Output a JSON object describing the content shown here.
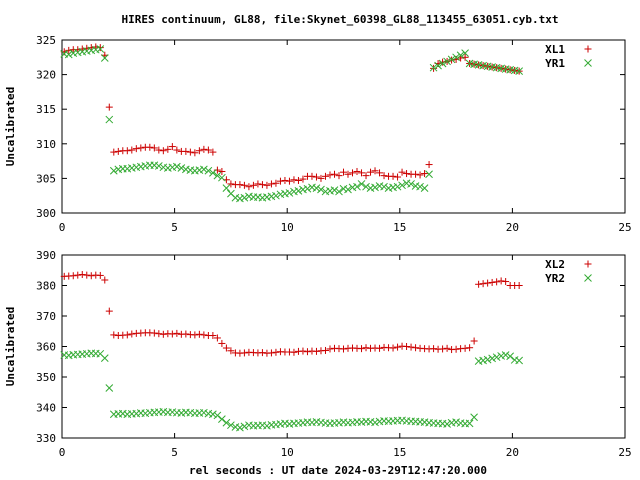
{
  "title": "HIRES continuum, GL88, file:Skynet_60398_GL88_113455_63051.cyb.txt",
  "xlabel": "rel seconds : UT date 2024-03-29T12:47:20.000",
  "colors": {
    "plus": "#cc0000",
    "cross": "#33aa33",
    "axis": "#000000"
  },
  "chart_data": [
    {
      "type": "scatter",
      "title": "HIRES continuum, GL88, file:Skynet_60398_GL88_113455_63051.cyb.txt",
      "xlabel": "",
      "ylabel": "Uncalibrated",
      "xlim": [
        0,
        25
      ],
      "ylim": [
        300,
        325
      ],
      "xticks": [
        0,
        5,
        10,
        15,
        20,
        25
      ],
      "yticks": [
        300,
        305,
        310,
        315,
        320,
        325
      ],
      "grid": false,
      "legend": "top-right",
      "series": [
        {
          "name": "XL1",
          "marker": "plus",
          "x": [
            0.1,
            0.3,
            0.5,
            0.7,
            0.9,
            1.1,
            1.3,
            1.5,
            1.7,
            1.9,
            2.1,
            2.3,
            2.5,
            2.7,
            2.9,
            3.1,
            3.3,
            3.5,
            3.7,
            3.9,
            4.1,
            4.3,
            4.5,
            4.7,
            4.9,
            5.1,
            5.3,
            5.5,
            5.7,
            5.9,
            6.1,
            6.3,
            6.5,
            6.7,
            6.9,
            7.1,
            7.3,
            7.5,
            7.7,
            7.9,
            8.1,
            8.3,
            8.5,
            8.7,
            8.9,
            9.1,
            9.3,
            9.5,
            9.7,
            9.9,
            10.1,
            10.3,
            10.5,
            10.7,
            10.9,
            11.1,
            11.3,
            11.5,
            11.7,
            11.9,
            12.1,
            12.3,
            12.5,
            12.7,
            12.9,
            13.1,
            13.3,
            13.5,
            13.7,
            13.9,
            14.1,
            14.3,
            14.5,
            14.7,
            14.9,
            15.1,
            15.3,
            15.5,
            15.7,
            15.9,
            16.1,
            16.3,
            16.5,
            16.7,
            16.9,
            17.1,
            17.3,
            17.5,
            17.7,
            17.9,
            18.1,
            18.3,
            18.5,
            18.7,
            18.9,
            19.1,
            19.3,
            19.5,
            19.7,
            19.9,
            20.1,
            20.3
          ],
          "y": [
            323.3,
            323.5,
            323.6,
            323.6,
            323.7,
            323.8,
            323.9,
            324.0,
            323.9,
            322.8,
            315.3,
            308.8,
            308.9,
            309.0,
            309.0,
            309.1,
            309.3,
            309.4,
            309.5,
            309.5,
            309.4,
            309.1,
            309.0,
            309.2,
            309.6,
            309.1,
            308.9,
            308.9,
            308.8,
            308.7,
            309.0,
            309.2,
            309.1,
            308.8,
            306.2,
            306.0,
            304.8,
            304.2,
            304.1,
            304.1,
            304.0,
            303.8,
            304.0,
            304.2,
            304.1,
            304.0,
            304.2,
            304.3,
            304.6,
            304.7,
            304.6,
            304.8,
            304.7,
            304.9,
            305.3,
            305.3,
            305.2,
            305.0,
            305.3,
            305.5,
            305.6,
            305.4,
            305.9,
            305.6,
            305.8,
            306.0,
            305.8,
            305.4,
            305.9,
            306.1,
            305.8,
            305.4,
            305.3,
            305.3,
            305.2,
            305.9,
            305.7,
            305.6,
            305.6,
            305.5,
            305.7,
            307.0,
            320.9,
            321.6,
            321.8,
            321.9,
            322.1,
            322.2,
            322.4,
            322.5,
            321.6,
            321.5,
            321.4,
            321.3,
            321.2,
            321.1,
            321.0,
            320.9,
            320.8,
            320.7,
            320.6,
            320.5
          ]
        },
        {
          "name": "YR1",
          "marker": "cross",
          "x": [
            0.1,
            0.3,
            0.5,
            0.7,
            0.9,
            1.1,
            1.3,
            1.5,
            1.7,
            1.9,
            2.1,
            2.3,
            2.5,
            2.7,
            2.9,
            3.1,
            3.3,
            3.5,
            3.7,
            3.9,
            4.1,
            4.3,
            4.5,
            4.7,
            4.9,
            5.1,
            5.3,
            5.5,
            5.7,
            5.9,
            6.1,
            6.3,
            6.5,
            6.7,
            6.9,
            7.1,
            7.3,
            7.5,
            7.7,
            7.9,
            8.1,
            8.3,
            8.5,
            8.7,
            8.9,
            9.1,
            9.3,
            9.5,
            9.7,
            9.9,
            10.1,
            10.3,
            10.5,
            10.7,
            10.9,
            11.1,
            11.3,
            11.5,
            11.7,
            11.9,
            12.1,
            12.3,
            12.5,
            12.7,
            12.9,
            13.1,
            13.3,
            13.5,
            13.7,
            13.9,
            14.1,
            14.3,
            14.5,
            14.7,
            14.9,
            15.1,
            15.3,
            15.5,
            15.7,
            15.9,
            16.1,
            16.3,
            16.5,
            16.7,
            16.9,
            17.1,
            17.3,
            17.5,
            17.7,
            17.9,
            18.1,
            18.3,
            18.5,
            18.7,
            18.9,
            19.1,
            19.3,
            19.5,
            19.7,
            19.9,
            20.1,
            20.3
          ],
          "y": [
            323.0,
            322.9,
            323.1,
            323.2,
            323.3,
            323.4,
            323.5,
            323.6,
            323.7,
            322.4,
            313.5,
            306.1,
            306.3,
            306.4,
            306.4,
            306.5,
            306.6,
            306.7,
            306.8,
            306.9,
            306.9,
            306.8,
            306.6,
            306.5,
            306.6,
            306.7,
            306.5,
            306.3,
            306.2,
            306.1,
            306.2,
            306.3,
            306.1,
            305.8,
            305.4,
            305.1,
            303.6,
            302.8,
            302.2,
            302.1,
            302.2,
            302.4,
            302.3,
            302.3,
            302.2,
            302.3,
            302.4,
            302.5,
            302.7,
            302.8,
            302.9,
            303.1,
            303.2,
            303.4,
            303.5,
            303.7,
            303.6,
            303.4,
            303.1,
            303.2,
            303.3,
            303.1,
            303.5,
            303.4,
            303.7,
            303.8,
            304.2,
            303.8,
            303.6,
            303.7,
            303.9,
            303.8,
            303.6,
            303.7,
            303.8,
            304.0,
            304.3,
            304.2,
            303.9,
            303.8,
            303.6,
            305.6,
            321.0,
            321.3,
            321.6,
            321.9,
            322.2,
            322.5,
            322.8,
            323.1,
            321.6,
            321.5,
            321.4,
            321.3,
            321.2,
            321.1,
            321.0,
            320.9,
            320.8,
            320.7,
            320.6,
            320.5
          ]
        }
      ]
    },
    {
      "type": "scatter",
      "xlabel": "rel seconds : UT date 2024-03-29T12:47:20.000",
      "ylabel": "Uncalibrated",
      "xlim": [
        0,
        25
      ],
      "ylim": [
        330,
        390
      ],
      "xticks": [
        0,
        5,
        10,
        15,
        20,
        25
      ],
      "yticks": [
        330,
        340,
        350,
        360,
        370,
        380,
        390
      ],
      "grid": false,
      "legend": "top-right",
      "series": [
        {
          "name": "XL2",
          "marker": "plus",
          "x": [
            0.1,
            0.3,
            0.5,
            0.7,
            0.9,
            1.1,
            1.3,
            1.5,
            1.7,
            1.9,
            2.1,
            2.3,
            2.5,
            2.7,
            2.9,
            3.1,
            3.3,
            3.5,
            3.7,
            3.9,
            4.1,
            4.3,
            4.5,
            4.7,
            4.9,
            5.1,
            5.3,
            5.5,
            5.7,
            5.9,
            6.1,
            6.3,
            6.5,
            6.7,
            6.9,
            7.1,
            7.3,
            7.5,
            7.7,
            7.9,
            8.1,
            8.3,
            8.5,
            8.7,
            8.9,
            9.1,
            9.3,
            9.5,
            9.7,
            9.9,
            10.1,
            10.3,
            10.5,
            10.7,
            10.9,
            11.1,
            11.3,
            11.5,
            11.7,
            11.9,
            12.1,
            12.3,
            12.5,
            12.7,
            12.9,
            13.1,
            13.3,
            13.5,
            13.7,
            13.9,
            14.1,
            14.3,
            14.5,
            14.7,
            14.9,
            15.1,
            15.3,
            15.5,
            15.7,
            15.9,
            16.1,
            16.3,
            16.5,
            16.7,
            16.9,
            17.1,
            17.3,
            17.5,
            17.7,
            17.9,
            18.1,
            18.3,
            18.5,
            18.7,
            18.9,
            19.1,
            19.3,
            19.5,
            19.7,
            19.9,
            20.1,
            20.3
          ],
          "y": [
            383.0,
            383.1,
            383.2,
            383.4,
            383.6,
            383.4,
            383.2,
            383.4,
            383.3,
            381.8,
            371.6,
            363.8,
            363.6,
            363.7,
            363.8,
            364.1,
            364.3,
            364.4,
            364.5,
            364.5,
            364.4,
            364.2,
            364.0,
            364.2,
            364.1,
            364.3,
            364.0,
            364.1,
            363.9,
            363.8,
            364.0,
            363.8,
            363.6,
            363.6,
            362.8,
            361.0,
            359.5,
            358.6,
            357.9,
            357.8,
            357.9,
            358.1,
            358.0,
            357.9,
            358.0,
            357.8,
            357.9,
            358.1,
            358.3,
            358.2,
            358.2,
            358.1,
            358.4,
            358.5,
            358.3,
            358.5,
            358.4,
            358.6,
            358.7,
            359.2,
            359.4,
            359.3,
            359.2,
            359.4,
            359.5,
            359.4,
            359.3,
            359.6,
            359.4,
            359.5,
            359.4,
            359.7,
            359.6,
            359.5,
            359.8,
            360.1,
            360.0,
            359.8,
            359.6,
            359.4,
            359.3,
            359.2,
            359.3,
            359.1,
            359.2,
            359.4,
            359.0,
            359.1,
            359.3,
            359.4,
            359.6,
            361.8,
            380.4,
            380.6,
            380.8,
            381.0,
            381.2,
            381.5,
            381.3,
            380.0,
            380.0,
            380.0
          ]
        },
        {
          "name": "YR2",
          "marker": "cross",
          "x": [
            0.1,
            0.3,
            0.5,
            0.7,
            0.9,
            1.1,
            1.3,
            1.5,
            1.7,
            1.9,
            2.1,
            2.3,
            2.5,
            2.7,
            2.9,
            3.1,
            3.3,
            3.5,
            3.7,
            3.9,
            4.1,
            4.3,
            4.5,
            4.7,
            4.9,
            5.1,
            5.3,
            5.5,
            5.7,
            5.9,
            6.1,
            6.3,
            6.5,
            6.7,
            6.9,
            7.1,
            7.3,
            7.5,
            7.7,
            7.9,
            8.1,
            8.3,
            8.5,
            8.7,
            8.9,
            9.1,
            9.3,
            9.5,
            9.7,
            9.9,
            10.1,
            10.3,
            10.5,
            10.7,
            10.9,
            11.1,
            11.3,
            11.5,
            11.7,
            11.9,
            12.1,
            12.3,
            12.5,
            12.7,
            12.9,
            13.1,
            13.3,
            13.5,
            13.7,
            13.9,
            14.1,
            14.3,
            14.5,
            14.7,
            14.9,
            15.1,
            15.3,
            15.5,
            15.7,
            15.9,
            16.1,
            16.3,
            16.5,
            16.7,
            16.9,
            17.1,
            17.3,
            17.5,
            17.7,
            17.9,
            18.1,
            18.3,
            18.5,
            18.7,
            18.9,
            19.1,
            19.3,
            19.5,
            19.7,
            19.9,
            20.1,
            20.3
          ],
          "y": [
            357.2,
            357.1,
            357.3,
            357.4,
            357.5,
            357.6,
            357.8,
            357.7,
            357.6,
            356.2,
            346.4,
            337.8,
            337.9,
            338.0,
            337.8,
            337.9,
            338.0,
            338.2,
            338.1,
            338.3,
            338.4,
            338.5,
            338.6,
            338.4,
            338.5,
            338.3,
            338.2,
            338.4,
            338.3,
            338.1,
            338.2,
            338.3,
            338.0,
            337.8,
            337.4,
            336.2,
            335.0,
            334.2,
            333.6,
            333.4,
            333.8,
            334.2,
            334.0,
            334.1,
            334.2,
            334.0,
            334.3,
            334.4,
            334.6,
            334.8,
            334.6,
            334.8,
            334.9,
            335.0,
            335.2,
            335.1,
            335.3,
            335.1,
            334.9,
            334.8,
            334.9,
            335.0,
            335.2,
            335.0,
            335.1,
            335.3,
            335.2,
            335.4,
            335.3,
            335.1,
            335.4,
            335.6,
            335.5,
            335.6,
            335.7,
            335.8,
            335.6,
            335.5,
            335.4,
            335.3,
            335.2,
            335.0,
            334.9,
            334.8,
            334.7,
            334.6,
            335.0,
            335.2,
            334.9,
            334.7,
            334.8,
            336.8,
            355.2,
            355.4,
            355.7,
            356.1,
            356.5,
            356.9,
            357.2,
            356.8,
            355.6,
            355.4
          ]
        }
      ]
    }
  ]
}
